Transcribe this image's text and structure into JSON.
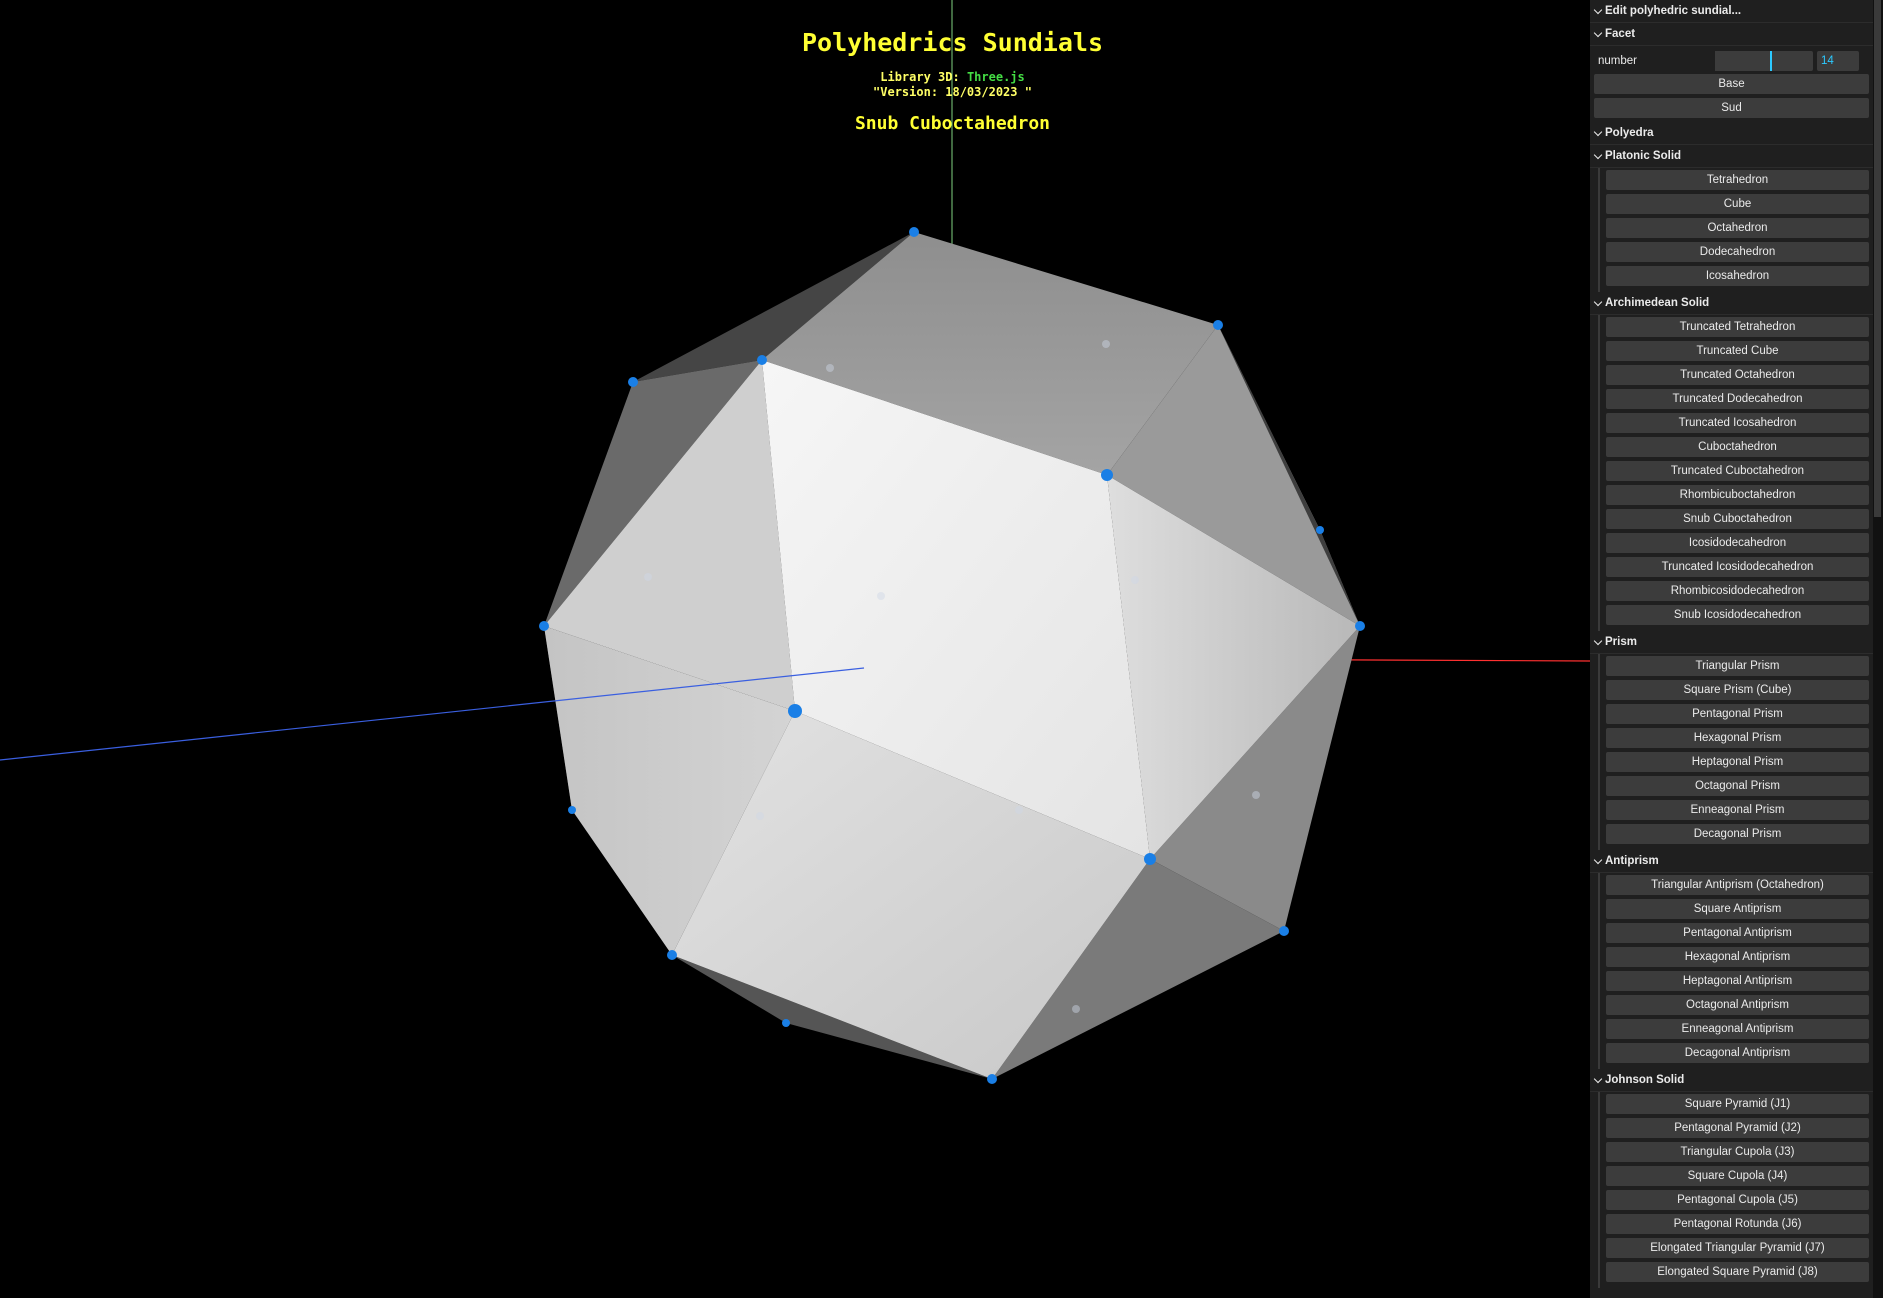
{
  "header": {
    "title": "Polyhedrics Sundials",
    "library_label": "Library 3D: ",
    "library_link": "Three.js",
    "version": "\"Version: 18/03/2023 \"",
    "solid_name": "Snub Cuboctahedron"
  },
  "colors": {
    "background": "#000000",
    "title": "#ffff33",
    "link": "#44dd44",
    "vertex": "#1a7fe6",
    "axis_x": "#ff3030",
    "axis_y": "#7fd27f",
    "axis_z": "#3a5fe0",
    "panel": "#1f1f1f",
    "button": "#3c3c3c",
    "accent": "#2cc9ff"
  },
  "gui": {
    "root_title": "Edit polyhedric sundial...",
    "facet": {
      "title": "Facet",
      "number_label": "number",
      "number_value": "14",
      "number_fraction": 0.56,
      "buttons": [
        "Base",
        "Sud"
      ]
    },
    "polyedra_title": "Polyedra",
    "platonic": {
      "title": "Platonic Solid",
      "items": [
        "Tetrahedron",
        "Cube",
        "Octahedron",
        "Dodecahedron",
        "Icosahedron"
      ]
    },
    "archimedean": {
      "title": "Archimedean Solid",
      "items": [
        "Truncated Tetrahedron",
        "Truncated Cube",
        "Truncated Octahedron",
        "Truncated Dodecahedron",
        "Truncated Icosahedron",
        "Cuboctahedron",
        "Truncated Cuboctahedron",
        "Rhombicuboctahedron",
        "Snub Cuboctahedron",
        "Icosidodecahedron",
        "Truncated Icosidodecahedron",
        "Rhombicosidodecahedron",
        "Snub Icosidodecahedron"
      ]
    },
    "prism": {
      "title": "Prism",
      "items": [
        "Triangular Prism",
        "Square Prism (Cube)",
        "Pentagonal Prism",
        "Hexagonal Prism",
        "Heptagonal Prism",
        "Octagonal Prism",
        "Enneagonal Prism",
        "Decagonal Prism"
      ]
    },
    "antiprism": {
      "title": "Antiprism",
      "items": [
        "Triangular Antiprism (Octahedron)",
        "Square Antiprism",
        "Pentagonal Antiprism",
        "Hexagonal Antiprism",
        "Heptagonal Antiprism",
        "Octagonal Antiprism",
        "Enneagonal Antiprism",
        "Decagonal Antiprism"
      ]
    },
    "johnson": {
      "title": "Johnson Solid",
      "items": [
        "Square Pyramid (J1)",
        "Pentagonal Pyramid (J2)",
        "Triangular Cupola (J3)",
        "Square Cupola (J4)",
        "Pentagonal Cupola (J5)",
        "Pentagonal Rotunda (J6)",
        "Elongated Triangular Pyramid (J7)",
        "Elongated Square Pyramid (J8)"
      ]
    }
  }
}
